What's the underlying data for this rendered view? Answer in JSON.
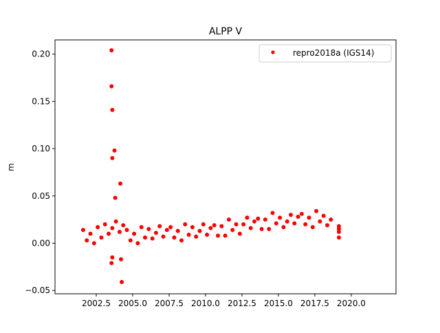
{
  "chart_data": {
    "type": "scatter",
    "title": "ALPP V",
    "xlabel": "",
    "ylabel": "m",
    "xlim": [
      1999.67,
      2023.07
    ],
    "ylim": [
      -0.0535,
      0.215
    ],
    "xticks": [
      2002.5,
      2005.0,
      2007.5,
      2010.0,
      2012.5,
      2015.0,
      2017.5,
      2020.0
    ],
    "xtick_labels": [
      "2002.5",
      "2005.0",
      "2007.5",
      "2010.0",
      "2012.5",
      "2015.0",
      "2017.5",
      "2020.0"
    ],
    "yticks": [
      -0.05,
      0.0,
      0.05,
      0.1,
      0.15,
      0.2
    ],
    "ytick_labels": [
      "−0.05",
      "0.00",
      "0.05",
      "0.10",
      "0.15",
      "0.20"
    ],
    "grid": false,
    "legend_position": "top-right",
    "series": [
      {
        "name": "repro2018a (IGS14)",
        "color": "#ff0000",
        "marker": "circle",
        "x": [
          2001.6,
          2001.85,
          2002.1,
          2002.35,
          2002.6,
          2002.85,
          2003.1,
          2003.35,
          2003.6,
          2003.85,
          2004.1,
          2004.35,
          2004.6,
          2004.85,
          2005.1,
          2005.35,
          2005.6,
          2005.85,
          2006.1,
          2006.35,
          2006.6,
          2006.85,
          2007.1,
          2007.35,
          2007.6,
          2007.85,
          2008.1,
          2008.35,
          2008.6,
          2008.85,
          2009.1,
          2009.35,
          2009.6,
          2009.85,
          2010.1,
          2010.35,
          2010.6,
          2010.85,
          2011.1,
          2011.35,
          2011.6,
          2011.85,
          2012.1,
          2012.35,
          2012.6,
          2012.85,
          2013.1,
          2013.35,
          2013.6,
          2013.85,
          2014.1,
          2014.35,
          2014.6,
          2014.85,
          2015.1,
          2015.35,
          2015.6,
          2015.85,
          2016.1,
          2016.35,
          2016.6,
          2016.85,
          2017.1,
          2017.35,
          2017.6,
          2017.85,
          2018.1,
          2018.35,
          2018.6,
          2019.15,
          2019.15,
          2019.15,
          2019.15,
          2003.55,
          2003.55,
          2003.6,
          2003.75,
          2003.6,
          2004.15,
          2003.55,
          2004.25,
          2003.8,
          2004.2,
          2003.6
        ],
        "y": [
          0.014,
          0.003,
          0.01,
          0.0,
          0.017,
          0.006,
          0.02,
          0.01,
          0.016,
          0.023,
          0.012,
          0.019,
          0.014,
          0.003,
          0.01,
          0.0,
          0.017,
          0.006,
          0.015,
          0.005,
          0.011,
          0.018,
          0.007,
          0.014,
          0.017,
          0.006,
          0.013,
          0.003,
          0.02,
          0.009,
          0.017,
          0.007,
          0.013,
          0.02,
          0.009,
          0.016,
          0.019,
          0.008,
          0.018,
          0.008,
          0.025,
          0.014,
          0.02,
          0.01,
          0.02,
          0.027,
          0.016,
          0.023,
          0.026,
          0.015,
          0.025,
          0.015,
          0.032,
          0.021,
          0.027,
          0.017,
          0.023,
          0.03,
          0.021,
          0.028,
          0.031,
          0.02,
          0.027,
          0.017,
          0.034,
          0.023,
          0.029,
          0.019,
          0.025,
          0.018,
          0.012,
          0.006,
          0.015,
          0.204,
          0.166,
          0.141,
          0.098,
          0.09,
          0.063,
          -0.021,
          -0.041,
          0.048,
          -0.017,
          -0.015
        ]
      }
    ]
  }
}
